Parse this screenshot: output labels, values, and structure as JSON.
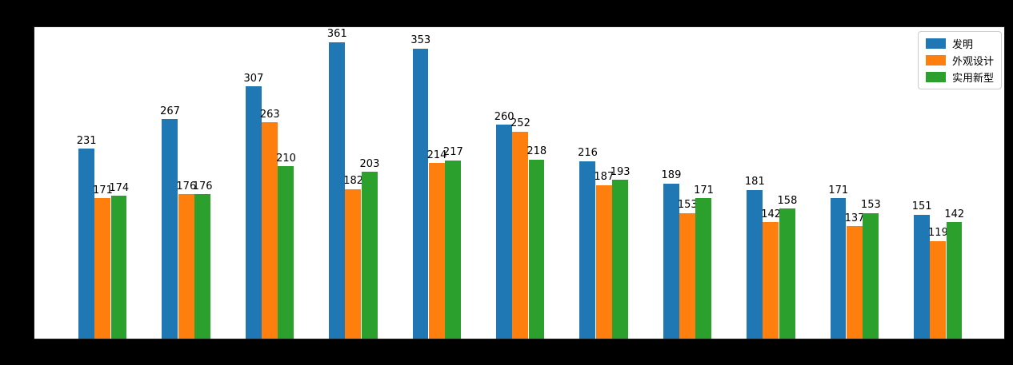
{
  "figure": {
    "background": "#000000",
    "plot_background": "#ffffff"
  },
  "chart_data": {
    "type": "bar",
    "title": "",
    "xlabel": "",
    "ylabel": "",
    "groups": 11,
    "series": [
      {
        "name": "发明",
        "color": "#1f77b4",
        "values": [
          231,
          267,
          307,
          361,
          353,
          260,
          216,
          189,
          181,
          171,
          151
        ]
      },
      {
        "name": "外观设计",
        "color": "#ff7f0e",
        "values": [
          171,
          176,
          263,
          182,
          214,
          252,
          187,
          153,
          142,
          137,
          119
        ]
      },
      {
        "name": "实用新型",
        "color": "#2ca02c",
        "values": [
          174,
          176,
          210,
          203,
          217,
          218,
          193,
          171,
          158,
          153,
          142
        ]
      }
    ],
    "ylim": [
      0,
      379
    ],
    "value_labels": true,
    "grid": false,
    "legend_position": "upper-right",
    "x_tick_labels_visible": false,
    "y_tick_labels_visible": false
  }
}
